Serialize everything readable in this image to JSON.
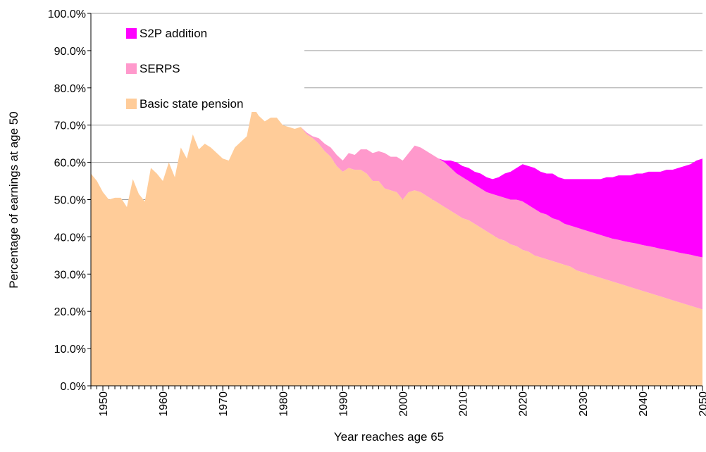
{
  "chart_data": {
    "type": "stacked_area",
    "x_label": "Year reaches age 65",
    "y_label": "Percentage of earnings at age 50",
    "x": [
      1948,
      1949,
      1950,
      1951,
      1952,
      1953,
      1954,
      1955,
      1956,
      1957,
      1958,
      1959,
      1960,
      1961,
      1962,
      1963,
      1964,
      1965,
      1966,
      1967,
      1968,
      1969,
      1970,
      1971,
      1972,
      1973,
      1974,
      1975,
      1976,
      1977,
      1978,
      1979,
      1980,
      1981,
      1982,
      1983,
      1984,
      1985,
      1986,
      1987,
      1988,
      1989,
      1990,
      1991,
      1992,
      1993,
      1994,
      1995,
      1996,
      1997,
      1998,
      1999,
      2000,
      2001,
      2002,
      2003,
      2004,
      2005,
      2006,
      2007,
      2008,
      2009,
      2010,
      2011,
      2012,
      2013,
      2014,
      2015,
      2016,
      2017,
      2018,
      2019,
      2020,
      2021,
      2022,
      2023,
      2024,
      2025,
      2026,
      2027,
      2028,
      2029,
      2030,
      2031,
      2032,
      2033,
      2034,
      2035,
      2036,
      2037,
      2038,
      2039,
      2040,
      2041,
      2042,
      2043,
      2044,
      2045,
      2046,
      2047,
      2048,
      2049,
      2050
    ],
    "series": [
      {
        "name": "Basic state pension",
        "color": "#ffcc99",
        "values": [
          57,
          55,
          52,
          50,
          50.5,
          50.5,
          48,
          55.5,
          51.5,
          49.5,
          58.5,
          57,
          55,
          60,
          56,
          64,
          61,
          67.5,
          63.5,
          65,
          64,
          62.5,
          61,
          60.5,
          64,
          65.5,
          67,
          75,
          72.5,
          71,
          72,
          72,
          70,
          69.5,
          69,
          69.5,
          67.5,
          66.5,
          65,
          63,
          61.5,
          59,
          57.5,
          58.5,
          58,
          58,
          57,
          55,
          55,
          53,
          52.5,
          52,
          50,
          52,
          52.5,
          52,
          51,
          50,
          49,
          48,
          47,
          46,
          45,
          44.5,
          43.5,
          42.5,
          41.5,
          40.5,
          39.5,
          39,
          38,
          37.5,
          36.5,
          36,
          35,
          34.5,
          34,
          33.5,
          33,
          32.5,
          32,
          31,
          30.5,
          30,
          29.5,
          29,
          28.5,
          28,
          27.5,
          27,
          26.5,
          26,
          25.5,
          25,
          24.5,
          24,
          23.5,
          23,
          22.5,
          22,
          21.5,
          21,
          20.5
        ]
      },
      {
        "name": "SERPS",
        "color": "#ff99cc",
        "values": [
          0,
          0,
          0,
          0,
          0,
          0,
          0,
          0,
          0,
          0,
          0,
          0,
          0,
          0,
          0,
          0,
          0,
          0,
          0,
          0,
          0,
          0,
          0,
          0,
          0,
          0,
          0,
          0,
          0,
          0,
          0,
          0,
          0,
          0,
          0,
          0,
          0.5,
          0.5,
          1.5,
          2,
          2.5,
          3,
          3,
          4,
          4,
          5.5,
          6.5,
          7.5,
          8,
          9.5,
          9,
          9.5,
          10.5,
          10.5,
          12,
          12,
          12,
          12,
          12,
          12,
          11.5,
          11,
          11,
          10.5,
          10.5,
          10.5,
          10.5,
          11,
          11.5,
          11.5,
          12,
          12.5,
          13,
          12.5,
          12.5,
          12,
          12,
          11.5,
          11.5,
          11,
          11,
          11.5,
          11.5,
          11.5,
          11.5,
          11.5,
          11.5,
          11.5,
          11.7,
          11.8,
          12,
          12.2,
          12.3,
          12.5,
          12.7,
          12.8,
          13,
          13.2,
          13.3,
          13.5,
          13.7,
          13.8,
          14
        ]
      },
      {
        "name": "S2P addition",
        "color": "#ff00ff",
        "values": [
          0,
          0,
          0,
          0,
          0,
          0,
          0,
          0,
          0,
          0,
          0,
          0,
          0,
          0,
          0,
          0,
          0,
          0,
          0,
          0,
          0,
          0,
          0,
          0,
          0,
          0,
          0,
          0,
          0,
          0,
          0,
          0,
          0,
          0,
          0,
          0,
          0,
          0,
          0,
          0,
          0,
          0,
          0,
          0,
          0,
          0,
          0,
          0,
          0,
          0,
          0,
          0,
          0,
          0,
          0,
          0,
          0,
          0,
          0,
          0.5,
          2,
          3,
          3,
          3.5,
          3.5,
          4,
          4,
          4,
          5,
          6.5,
          7.5,
          8.5,
          10,
          10.5,
          11,
          11,
          11,
          12,
          11.5,
          12,
          12.5,
          13,
          13.5,
          14,
          14.5,
          15,
          16,
          16.5,
          17.3,
          17.7,
          18,
          18.8,
          19.2,
          20,
          20.3,
          20.7,
          21.5,
          21.8,
          22.7,
          23.5,
          24.3,
          25.7,
          26.5
        ]
      }
    ],
    "xlim": [
      1948,
      2050
    ],
    "xticks": [
      1950,
      1960,
      1970,
      1980,
      1990,
      2000,
      2010,
      2020,
      2030,
      2040,
      2050
    ],
    "ylim": [
      0,
      100
    ],
    "yticks": [
      {
        "value": 0,
        "label": "0.0%"
      },
      {
        "value": 10,
        "label": "10.0%"
      },
      {
        "value": 20,
        "label": "20.0%"
      },
      {
        "value": 30,
        "label": "30.0%"
      },
      {
        "value": 40,
        "label": "40.0%"
      },
      {
        "value": 50,
        "label": "50.0%"
      },
      {
        "value": 60,
        "label": "60.0%"
      },
      {
        "value": 70,
        "label": "70.0%"
      },
      {
        "value": 80,
        "label": "80.0%"
      },
      {
        "value": 90,
        "label": "90.0%"
      },
      {
        "value": 100,
        "label": "100.0%"
      }
    ],
    "grid": true,
    "legend": "upper left"
  }
}
